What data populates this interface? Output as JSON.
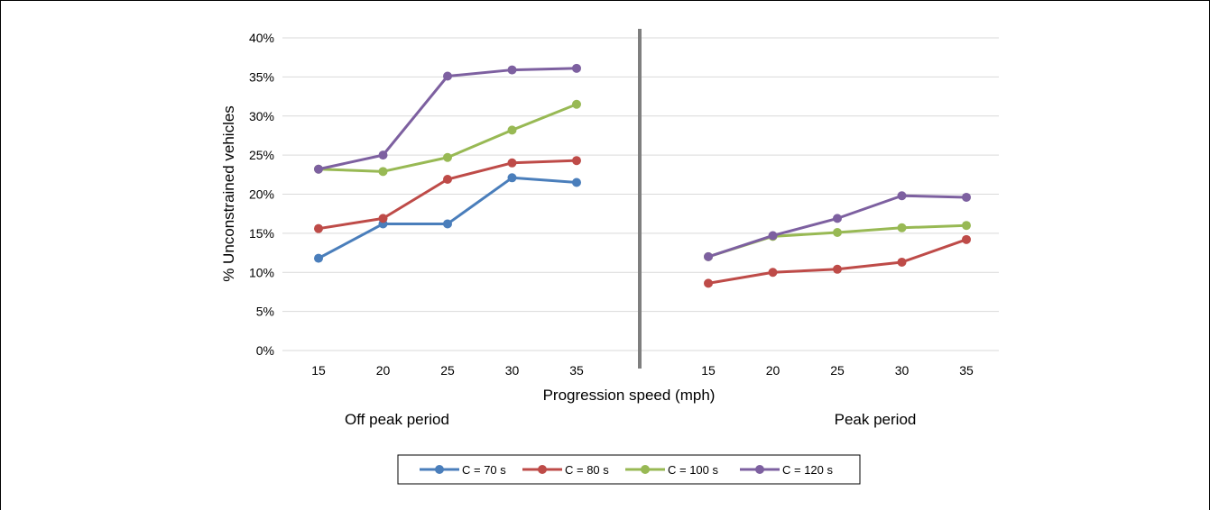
{
  "chart_data": {
    "type": "line",
    "ylabel": "% Unconstrained vehicles",
    "xlabel": "Progression speed (mph)",
    "ylim": [
      0,
      40
    ],
    "yticks": [
      "0%",
      "5%",
      "10%",
      "15%",
      "20%",
      "25%",
      "30%",
      "35%",
      "40%"
    ],
    "grid": true,
    "legend_position": "bottom",
    "groups": [
      {
        "label": "Off peak period",
        "categories": [
          "15",
          "20",
          "25",
          "30",
          "35"
        ],
        "series": [
          {
            "name": "C = 70 s",
            "color": "#4a7ebb",
            "values": [
              11.8,
              16.2,
              16.2,
              22.1,
              21.5
            ]
          },
          {
            "name": "C = 80 s",
            "color": "#be4b48",
            "values": [
              15.6,
              16.9,
              21.9,
              24.0,
              24.3
            ]
          },
          {
            "name": "C = 100 s",
            "color": "#98b954",
            "values": [
              23.2,
              22.9,
              24.7,
              28.2,
              31.5
            ]
          },
          {
            "name": "C = 120 s",
            "color": "#7d60a0",
            "values": [
              23.2,
              25.0,
              35.1,
              35.9,
              36.1
            ]
          }
        ]
      },
      {
        "label": "Peak period",
        "categories": [
          "15",
          "20",
          "25",
          "30",
          "35"
        ],
        "series": [
          {
            "name": "C = 80 s",
            "color": "#be4b48",
            "values": [
              8.6,
              10.0,
              10.4,
              11.3,
              14.2
            ]
          },
          {
            "name": "C = 100 s",
            "color": "#98b954",
            "values": [
              12.0,
              14.6,
              15.1,
              15.7,
              16.0
            ]
          },
          {
            "name": "C = 120 s",
            "color": "#7d60a0",
            "values": [
              12.0,
              14.7,
              16.9,
              19.8,
              19.6
            ]
          }
        ]
      }
    ],
    "legend": [
      {
        "name": "C = 70 s",
        "color": "#4a7ebb"
      },
      {
        "name": "C = 80 s",
        "color": "#be4b48"
      },
      {
        "name": "C = 100 s",
        "color": "#98b954"
      },
      {
        "name": "C = 120 s",
        "color": "#7d60a0"
      }
    ]
  }
}
